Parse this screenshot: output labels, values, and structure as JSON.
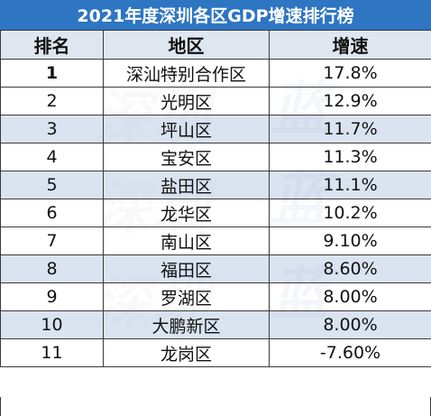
{
  "title": "2021年度深圳各区GDP增速排行榜",
  "headers": {
    "rank": "排名",
    "district": "地区",
    "growth": "增速"
  },
  "rows": [
    {
      "rank": "1",
      "district": "深汕特别合作区",
      "growth": "17.8%"
    },
    {
      "rank": "2",
      "district": "光明区",
      "growth": "12.9%"
    },
    {
      "rank": "3",
      "district": "坪山区",
      "growth": "11.7%"
    },
    {
      "rank": "4",
      "district": "宝安区",
      "growth": "11.3%"
    },
    {
      "rank": "5",
      "district": "盐田区",
      "growth": "11.1%"
    },
    {
      "rank": "6",
      "district": "龙华区",
      "growth": "10.2%"
    },
    {
      "rank": "7",
      "district": "南山区",
      "growth": "9.10%"
    },
    {
      "rank": "8",
      "district": "福田区",
      "growth": "8.60%"
    },
    {
      "rank": "9",
      "district": "罗湖区",
      "growth": "8.00%"
    },
    {
      "rank": "10",
      "district": "大鹏新区",
      "growth": "8.00%"
    },
    {
      "rank": "11",
      "district": "龙岗区",
      "growth": "-7.60%"
    }
  ],
  "watermark": {
    "text_left": "深圳",
    "text_right": "蓝"
  },
  "colors": {
    "title_bg": "#2e75c2",
    "title_text": "#ffffff",
    "shaded_row": "#ced9eb",
    "border": "#3a3a3a"
  }
}
